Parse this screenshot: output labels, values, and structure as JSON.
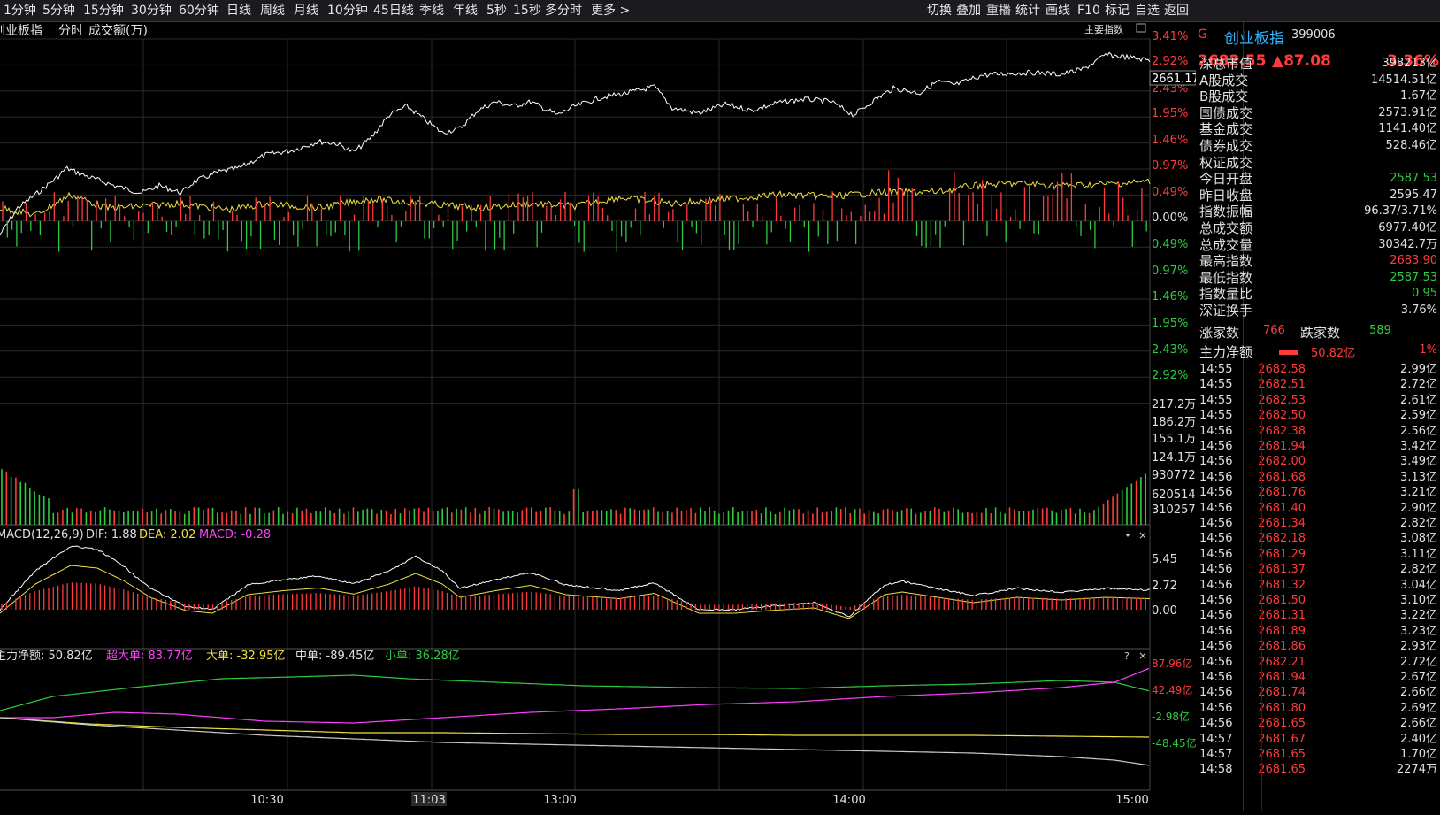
{
  "toolbar": {
    "timeframes": [
      "1分钟",
      "5分钟",
      "15分钟",
      "30分钟",
      "60分钟",
      "日线",
      "周线",
      "月线",
      "10分钟",
      "45日线",
      "季线",
      "年线",
      "5秒",
      "15秒",
      "多分时",
      "更多 >"
    ],
    "actions": [
      "切换",
      "叠加",
      "重播",
      "统计",
      "画线",
      "F10",
      "标记",
      "自选",
      "返回"
    ]
  },
  "header": {
    "index_name": "创业板指",
    "mode": "分时",
    "volume_label": "成交额(万)",
    "main_index_label": "主要指数"
  },
  "price_axis": {
    "right_labels_up": [
      "3.41%",
      "2.92%",
      "2.43%",
      "1.95%",
      "1.46%",
      "0.97%",
      "0.49%",
      "0.00%"
    ],
    "right_labels_down": [
      "0.49%",
      "0.97%",
      "1.46%",
      "1.95%",
      "2.43%",
      "2.92%"
    ],
    "last_price_box": "2661.17"
  },
  "volume_axis": {
    "labels": [
      "217.2万",
      "186.2万",
      "155.1万",
      "124.1万",
      "930772",
      "620514",
      "310257"
    ]
  },
  "macd": {
    "title": "MACD(12,26,9)",
    "dif_label": "DIF: 1.88",
    "dea_label": "DEA: 2.02",
    "macd_label": "MACD: -0.28",
    "axis": [
      "5.45",
      "2.72",
      "0.00"
    ]
  },
  "fund_flow": {
    "main_label": "主力净额: 50.82亿",
    "super_label": "超大单: 83.77亿",
    "large_label": "大单: -32.95亿",
    "medium_label": "中单: -89.45亿",
    "small_label": "小单: 36.28亿",
    "axis": [
      "87.96亿",
      "42.49亿",
      "-2.98亿",
      "-48.45亿"
    ]
  },
  "time_axis": [
    "10:30",
    "11:03",
    "13:00",
    "14:00",
    "15:00"
  ],
  "quote": {
    "flag": "G",
    "name": "创业板指",
    "code": "399006",
    "price": "2682.55",
    "change": "▲87.08",
    "change_pct": "3.36%"
  },
  "stats": [
    {
      "label": "深总市值",
      "value": "398213亿",
      "color": "#e0e0e0"
    },
    {
      "label": "A股成交",
      "value": "14514.51亿",
      "color": "#e0e0e0"
    },
    {
      "label": "B股成交",
      "value": "1.67亿",
      "color": "#e0e0e0"
    },
    {
      "label": "国债成交",
      "value": "2573.91亿",
      "color": "#e0e0e0"
    },
    {
      "label": "基金成交",
      "value": "1141.40亿",
      "color": "#e0e0e0"
    },
    {
      "label": "债券成交",
      "value": "528.46亿",
      "color": "#e0e0e0"
    },
    {
      "label": "权证成交",
      "value": "",
      "color": "#e0e0e0"
    },
    {
      "label": "今日开盘",
      "value": "2587.53",
      "color": "#2ecc40"
    },
    {
      "label": "昨日收盘",
      "value": "2595.47",
      "color": "#e0e0e0"
    },
    {
      "label": "指数振幅",
      "value": "96.37/3.71%",
      "color": "#e0e0e0"
    },
    {
      "label": "总成交额",
      "value": "6977.40亿",
      "color": "#e0e0e0"
    },
    {
      "label": "总成交量",
      "value": "30342.7万",
      "color": "#e0e0e0"
    },
    {
      "label": "最高指数",
      "value": "2683.90",
      "color": "#ff3b3b"
    },
    {
      "label": "最低指数",
      "value": "2587.53",
      "color": "#2ecc40"
    },
    {
      "label": "指数量比",
      "value": "0.95",
      "color": "#2ecc40"
    },
    {
      "label": "深证换手",
      "value": "3.76%",
      "color": "#e0e0e0"
    }
  ],
  "breadth": {
    "up_label": "涨家数",
    "up_value": "766",
    "down_label": "跌家数",
    "down_value": "589"
  },
  "net_flow": {
    "label": "主力净额",
    "value": "50.82亿",
    "pct": "1%"
  },
  "ticks": [
    {
      "time": "14:55",
      "price": "2682.58",
      "vol": "2.99亿"
    },
    {
      "time": "14:55",
      "price": "2682.51",
      "vol": "2.72亿"
    },
    {
      "time": "14:55",
      "price": "2682.53",
      "vol": "2.61亿"
    },
    {
      "time": "14:55",
      "price": "2682.50",
      "vol": "2.59亿"
    },
    {
      "time": "14:56",
      "price": "2682.38",
      "vol": "2.56亿"
    },
    {
      "time": "14:56",
      "price": "2681.94",
      "vol": "3.42亿"
    },
    {
      "time": "14:56",
      "price": "2682.00",
      "vol": "3.49亿"
    },
    {
      "time": "14:56",
      "price": "2681.68",
      "vol": "3.13亿"
    },
    {
      "time": "14:56",
      "price": "2681.76",
      "vol": "3.21亿"
    },
    {
      "time": "14:56",
      "price": "2681.40",
      "vol": "2.90亿"
    },
    {
      "time": "14:56",
      "price": "2681.34",
      "vol": "2.82亿"
    },
    {
      "time": "14:56",
      "price": "2682.18",
      "vol": "3.08亿"
    },
    {
      "time": "14:56",
      "price": "2681.29",
      "vol": "3.11亿"
    },
    {
      "time": "14:56",
      "price": "2681.37",
      "vol": "2.82亿"
    },
    {
      "time": "14:56",
      "price": "2681.32",
      "vol": "3.04亿"
    },
    {
      "time": "14:56",
      "price": "2681.50",
      "vol": "3.10亿"
    },
    {
      "time": "14:56",
      "price": "2681.31",
      "vol": "3.22亿"
    },
    {
      "time": "14:56",
      "price": "2681.89",
      "vol": "3.23亿"
    },
    {
      "time": "14:56",
      "price": "2681.86",
      "vol": "2.93亿"
    },
    {
      "time": "14:56",
      "price": "2682.21",
      "vol": "2.72亿"
    },
    {
      "time": "14:56",
      "price": "2681.94",
      "vol": "2.67亿"
    },
    {
      "time": "14:56",
      "price": "2681.74",
      "vol": "2.66亿"
    },
    {
      "time": "14:56",
      "price": "2681.80",
      "vol": "2.69亿"
    },
    {
      "time": "14:56",
      "price": "2681.65",
      "vol": "2.66亿"
    },
    {
      "time": "14:57",
      "price": "2681.67",
      "vol": "2.40亿"
    },
    {
      "time": "14:57",
      "price": "2681.65",
      "vol": "1.70亿"
    },
    {
      "time": "14:58",
      "price": "2681.65",
      "vol": "2274万"
    }
  ],
  "colors": {
    "up": "#ff3b3b",
    "down": "#2ecc40",
    "price_line": "#ffffff",
    "avg_line": "#f0e040",
    "macd_neg": "#5fd3e8",
    "super": "#ff40ff",
    "large": "#f0e040",
    "small": "#2ecc40"
  }
}
